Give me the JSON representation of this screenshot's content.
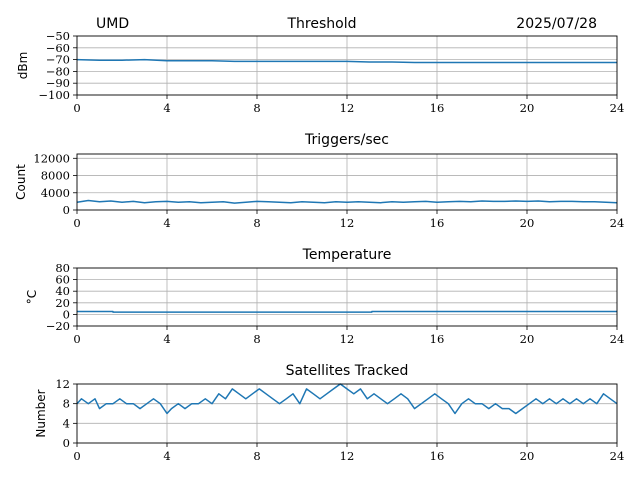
{
  "header": {
    "left": "UMD",
    "right": "2025/07/28"
  },
  "style": {
    "line_color": "#1f77b4",
    "grid_color": "#b0b0b0"
  },
  "chart_data": [
    {
      "type": "line",
      "title": "Threshold",
      "ylabel": "dBm",
      "xlim": [
        0,
        24
      ],
      "ylim": [
        -100,
        -50
      ],
      "xticks": [
        0,
        4,
        8,
        12,
        16,
        20,
        24
      ],
      "yticks": [
        -100,
        -90,
        -80,
        -70,
        -60,
        -50
      ],
      "ytick_labels": [
        "−100",
        "−90",
        "−80",
        "−70",
        "−60",
        "−50"
      ],
      "grid": true,
      "series": [
        {
          "x": [
            0,
            1,
            2,
            3,
            4,
            5,
            6,
            7,
            8,
            9,
            10,
            11,
            12,
            13,
            14,
            15,
            16,
            17,
            18,
            19,
            20,
            21,
            22,
            23,
            24
          ],
          "y": [
            -70,
            -70.5,
            -70.5,
            -70,
            -71,
            -71,
            -71,
            -71.5,
            -71.5,
            -71.5,
            -71.5,
            -71.5,
            -71.5,
            -72,
            -72,
            -72.5,
            -72.5,
            -72.5,
            -72.5,
            -72.5,
            -72.5,
            -72.5,
            -72.5,
            -72.5,
            -72.5
          ]
        }
      ]
    },
    {
      "type": "line",
      "title": "Triggers/sec",
      "ylabel": "Count",
      "xlim": [
        0,
        24
      ],
      "ylim": [
        0,
        13000
      ],
      "xticks": [
        0,
        4,
        8,
        12,
        16,
        20,
        24
      ],
      "yticks": [
        0,
        4000,
        8000,
        12000
      ],
      "ytick_labels": [
        "0",
        "4000",
        "8000",
        "12000"
      ],
      "grid": true,
      "series": [
        {
          "x": [
            0,
            0.5,
            1,
            1.5,
            2,
            2.5,
            3,
            3.5,
            4,
            4.5,
            5,
            5.5,
            6,
            6.5,
            7,
            7.5,
            8,
            8.5,
            9,
            9.5,
            10,
            10.5,
            11,
            11.5,
            12,
            12.5,
            13,
            13.5,
            14,
            14.5,
            15,
            15.5,
            16,
            16.5,
            17,
            17.5,
            18,
            18.5,
            19,
            19.5,
            20,
            20.5,
            21,
            21.5,
            22,
            22.5,
            23,
            23.5,
            24
          ],
          "y": [
            1800,
            2200,
            1900,
            2100,
            1800,
            2000,
            1700,
            1900,
            2000,
            1800,
            1900,
            1700,
            1800,
            1900,
            1600,
            1800,
            2000,
            1900,
            1800,
            1700,
            1900,
            1800,
            1700,
            1900,
            1800,
            1900,
            1800,
            1700,
            1900,
            1800,
            1900,
            2000,
            1800,
            1900,
            2000,
            1900,
            2100,
            2000,
            2000,
            2100,
            2000,
            2100,
            1900,
            2000,
            2000,
            1900,
            1900,
            1800,
            1700
          ]
        }
      ]
    },
    {
      "type": "line",
      "title": "Temperature",
      "ylabel": "°C",
      "xlim": [
        0,
        24
      ],
      "ylim": [
        -20,
        80
      ],
      "xticks": [
        0,
        4,
        8,
        12,
        16,
        20,
        24
      ],
      "yticks": [
        -20,
        0,
        20,
        40,
        60,
        80
      ],
      "ytick_labels": [
        "−20",
        "0",
        "20",
        "40",
        "60",
        "80"
      ],
      "grid": true,
      "series": [
        {
          "x": [
            0,
            1.6,
            1.6,
            13.1,
            13.1,
            24
          ],
          "y": [
            5,
            5,
            4,
            4,
            5,
            5
          ]
        }
      ]
    },
    {
      "type": "line",
      "title": "Satellites Tracked",
      "ylabel": "Number",
      "xlim": [
        0,
        24
      ],
      "ylim": [
        0,
        12
      ],
      "xticks": [
        0,
        4,
        8,
        12,
        16,
        20,
        24
      ],
      "yticks": [
        0,
        4,
        8,
        12
      ],
      "ytick_labels": [
        "0",
        "4",
        "8",
        "12"
      ],
      "grid": true,
      "series": [
        {
          "x": [
            0,
            0.2,
            0.5,
            0.8,
            1.0,
            1.3,
            1.6,
            1.9,
            2.2,
            2.5,
            2.8,
            3.1,
            3.4,
            3.7,
            4.0,
            4.2,
            4.5,
            4.8,
            5.1,
            5.4,
            5.7,
            6.0,
            6.3,
            6.6,
            6.9,
            7.2,
            7.5,
            7.8,
            8.1,
            8.4,
            8.7,
            9.0,
            9.3,
            9.6,
            9.9,
            10.2,
            10.5,
            10.8,
            11.1,
            11.4,
            11.7,
            12.0,
            12.3,
            12.6,
            12.9,
            13.2,
            13.5,
            13.8,
            14.1,
            14.4,
            14.7,
            15.0,
            15.3,
            15.6,
            15.9,
            16.2,
            16.5,
            16.8,
            17.1,
            17.4,
            17.7,
            18.0,
            18.3,
            18.6,
            18.9,
            19.2,
            19.5,
            19.8,
            20.1,
            20.4,
            20.7,
            21.0,
            21.3,
            21.6,
            21.9,
            22.2,
            22.5,
            22.8,
            23.1,
            23.4,
            23.7,
            24.0
          ],
          "y": [
            8,
            9,
            8,
            9,
            7,
            8,
            8,
            9,
            8,
            8,
            7,
            8,
            9,
            8,
            6,
            7,
            8,
            7,
            8,
            8,
            9,
            8,
            10,
            9,
            11,
            10,
            9,
            10,
            11,
            10,
            9,
            8,
            9,
            10,
            8,
            11,
            10,
            9,
            10,
            11,
            12,
            11,
            10,
            11,
            9,
            10,
            9,
            8,
            9,
            10,
            9,
            7,
            8,
            9,
            10,
            9,
            8,
            6,
            8,
            9,
            8,
            8,
            7,
            8,
            7,
            7,
            6,
            7,
            8,
            9,
            8,
            9,
            8,
            9,
            8,
            9,
            8,
            9,
            8,
            10,
            9,
            8
          ]
        }
      ]
    }
  ]
}
